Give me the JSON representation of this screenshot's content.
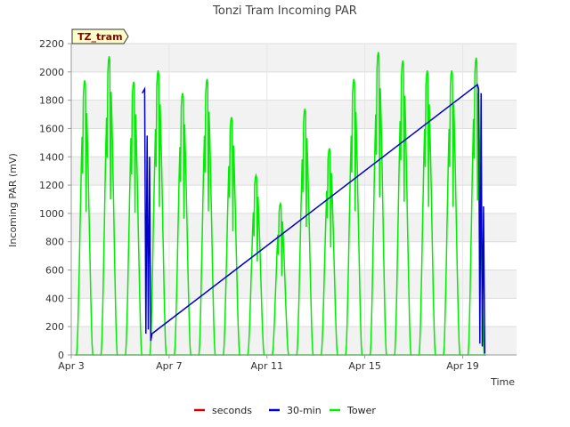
{
  "chart_data": {
    "type": "line",
    "title": "Tonzi Tram Incoming PAR",
    "xlabel": "Time",
    "ylabel": "Incoming PAR (mV)",
    "badge": "TZ_tram",
    "xlim": [
      3.0,
      21.2
    ],
    "ylim": [
      0,
      2200
    ],
    "x_ticks": [
      {
        "label": "Apr 3",
        "value": 3
      },
      {
        "label": "Apr 7",
        "value": 7
      },
      {
        "label": "Apr 11",
        "value": 11
      },
      {
        "label": "Apr 15",
        "value": 15
      },
      {
        "label": "Apr 19",
        "value": 19
      }
    ],
    "y_ticks": [
      0,
      200,
      400,
      600,
      800,
      1000,
      1200,
      1400,
      1600,
      1800,
      2000,
      2200
    ],
    "grid": true,
    "legend_position": "bottom",
    "series": [
      {
        "name": "seconds",
        "color": "#cc0000",
        "x": [],
        "y": []
      },
      {
        "name": "30-min",
        "color": "#0000cc",
        "x": [
          5.9,
          6.0,
          6.05,
          6.1,
          6.15,
          6.2,
          6.25,
          6.3,
          19.6,
          19.65,
          19.7,
          19.75,
          19.8,
          19.85,
          19.9
        ],
        "y": [
          1850,
          1880,
          150,
          1550,
          180,
          1400,
          100,
          150,
          1910,
          1880,
          80,
          1850,
          60,
          1050,
          10
        ]
      },
      {
        "name": "Tower",
        "color": "#00ee00",
        "peaks": [
          {
            "center": 3.55,
            "peak": 1940
          },
          {
            "center": 4.55,
            "peak": 2110
          },
          {
            "center": 5.55,
            "peak": 1930
          },
          {
            "center": 6.55,
            "peak": 2010
          },
          {
            "center": 7.55,
            "peak": 1850
          },
          {
            "center": 8.55,
            "peak": 1950
          },
          {
            "center": 9.55,
            "peak": 1680
          },
          {
            "center": 10.55,
            "peak": 1270
          },
          {
            "center": 11.55,
            "peak": 1070
          },
          {
            "center": 12.55,
            "peak": 1740
          },
          {
            "center": 13.55,
            "peak": 1460
          },
          {
            "center": 14.55,
            "peak": 1950
          },
          {
            "center": 15.55,
            "peak": 2140
          },
          {
            "center": 16.55,
            "peak": 2080
          },
          {
            "center": 17.55,
            "peak": 2010
          },
          {
            "center": 18.55,
            "peak": 2010
          },
          {
            "center": 19.55,
            "peak": 2100
          }
        ]
      }
    ]
  }
}
